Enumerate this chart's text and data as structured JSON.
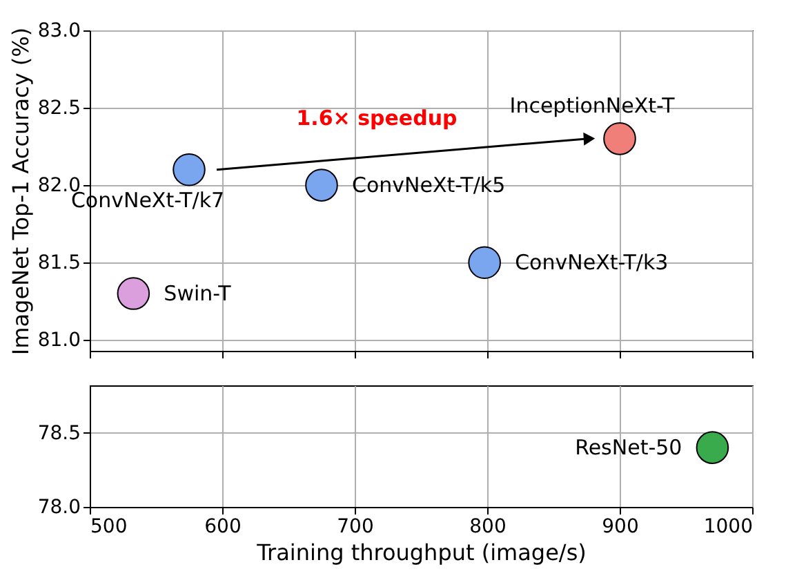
{
  "chart_data": [
    {
      "type": "scatter",
      "ylabel": "ImageNet Top-1 Accuracy (%)",
      "xlim": [
        500,
        1000
      ],
      "xticks": [
        500,
        600,
        700,
        800,
        900,
        1000
      ],
      "ylim": [
        80.93,
        83.0
      ],
      "yticks": [
        {
          "value": 81,
          "label": "81.0"
        },
        81.5,
        {
          "value": 82,
          "label": "82.0"
        },
        82.5,
        {
          "value": 83,
          "label": "83.0"
        }
      ],
      "tick_labels": "y",
      "grid": true,
      "series": [
        {
          "name": "Swin-T",
          "color": "#da9fdc",
          "x": [
            533
          ],
          "values": [
            81.3
          ]
        },
        {
          "name": "ConvNeXt-T/k7",
          "color": "#7aa6f0",
          "x": [
            575
          ],
          "values": [
            82.1
          ]
        },
        {
          "name": "ConvNeXt-T/k5",
          "color": "#7aa6f0",
          "x": [
            675
          ],
          "values": [
            82.0
          ]
        },
        {
          "name": "ConvNeXt-T/k3",
          "color": "#7aa6f0",
          "x": [
            798
          ],
          "values": [
            81.5
          ]
        },
        {
          "name": "InceptionNeXt-T",
          "color": "#f07f7a",
          "x": [
            900
          ],
          "values": [
            82.3
          ]
        }
      ],
      "annotations": [
        "1.6× speedup"
      ]
    },
    {
      "type": "scatter",
      "xlabel": "Training throughput (image/s)",
      "xlim": [
        500,
        1000
      ],
      "xticks": [
        500,
        600,
        700,
        800,
        900,
        1000
      ],
      "ylim": [
        78.0,
        78.82
      ],
      "yticks": [
        {
          "value": 78,
          "label": "78.0"
        },
        78.5
      ],
      "grid": true,
      "series": [
        {
          "name": "ResNet-50",
          "color": "#3aab4c",
          "x": [
            970
          ],
          "values": [
            78.4
          ]
        }
      ]
    }
  ]
}
